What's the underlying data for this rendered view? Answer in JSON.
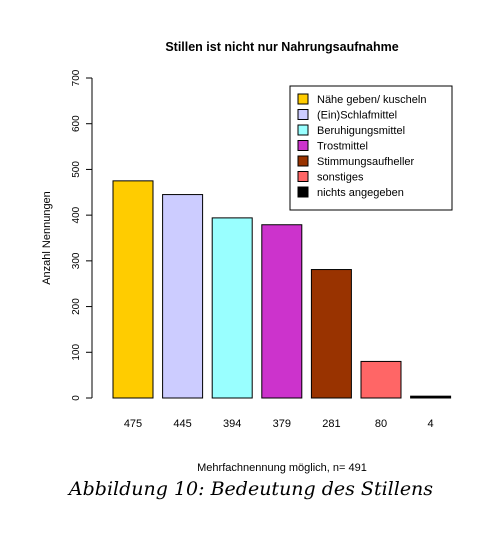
{
  "chart_data": {
    "type": "bar",
    "title": "Stillen ist nicht nur  Nahrungsaufnahme",
    "xlabel": "Mehrfachnennung möglich, n= 491",
    "ylabel": "Anzahl Nennungen",
    "ylim": [
      0,
      700
    ],
    "yticks": [
      "0",
      "100",
      "200",
      "300",
      "400",
      "500",
      "600",
      "700"
    ],
    "grid": false,
    "legend_position": "top-right",
    "categories": [
      "Nähe geben/ kuscheln",
      "(Ein)Schlafmittel",
      "Beruhigungsmittel",
      "Trostmittel",
      "Stimmungsaufheller",
      "sonstiges",
      "nichts angegeben"
    ],
    "values": [
      475,
      445,
      394,
      379,
      281,
      80,
      4
    ],
    "value_labels": [
      "475",
      "445",
      "394",
      "379",
      "281",
      "80",
      "4"
    ],
    "colors": [
      "#ffcc00",
      "#ccccff",
      "#99ffff",
      "#cc33cc",
      "#993300",
      "#ff6666",
      "#000000"
    ]
  },
  "caption": "Abbildung 10: Bedeutung des Stillens"
}
